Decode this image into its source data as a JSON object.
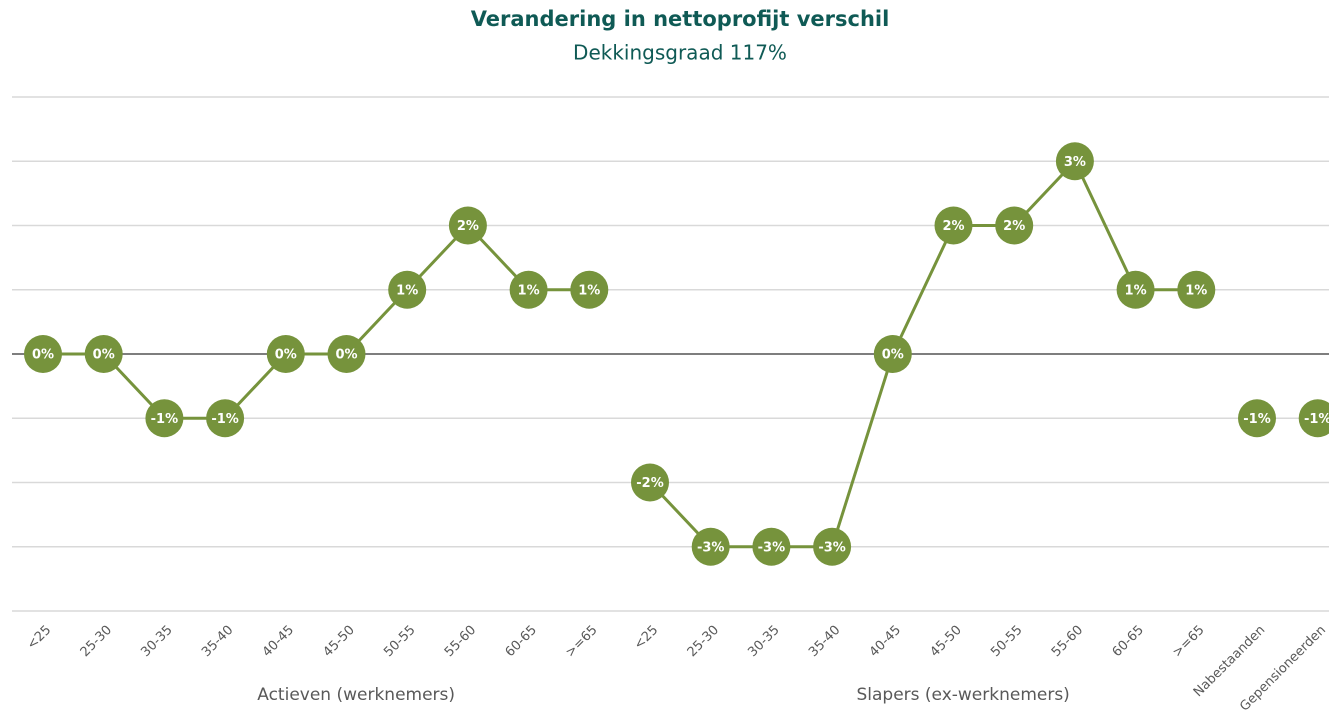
{
  "chart_data": {
    "type": "line",
    "title": "Verandering in nettoprofijt verschil",
    "subtitle": "Dekkingsgraad 117%",
    "categories": [
      "<25",
      "25-30",
      "30-35",
      "35-40",
      "40-45",
      "45-50",
      "50-55",
      "55-60",
      "60-65",
      ">=65",
      "<25",
      "25-30",
      "30-35",
      "35-40",
      "40-45",
      "45-50",
      "50-55",
      "55-60",
      "60-65",
      ">=65",
      "Nabestaanden",
      "Gepensioneerden"
    ],
    "group_labels": [
      "Actieven (werknemers)",
      "Slapers (ex-werknemers)"
    ],
    "series": [
      {
        "color": "#76933c",
        "values": [
          0,
          0,
          -1,
          -1,
          0,
          0,
          1,
          2,
          1,
          1,
          null,
          null,
          null,
          null,
          null,
          null,
          null,
          null,
          null,
          null,
          null,
          null
        ],
        "value_labels": [
          "0%",
          "0%",
          "-1%",
          "-1%",
          "0%",
          "0%",
          "1%",
          "2%",
          "1%",
          "1%",
          null,
          null,
          null,
          null,
          null,
          null,
          null,
          null,
          null,
          null,
          null,
          null
        ]
      },
      {
        "color": "#76933c",
        "values": [
          null,
          null,
          null,
          null,
          null,
          null,
          null,
          null,
          null,
          null,
          -2,
          -3,
          -3,
          -3,
          0,
          2,
          2,
          3,
          1,
          1,
          null,
          null
        ],
        "value_labels": [
          null,
          null,
          null,
          null,
          null,
          null,
          null,
          null,
          null,
          null,
          "-2%",
          "-3%",
          "-3%",
          "-3%",
          "0%",
          "2%",
          "2%",
          "3%",
          "1%",
          "1%",
          null,
          null
        ]
      },
      {
        "color": "#76933c",
        "values": [
          null,
          null,
          null,
          null,
          null,
          null,
          null,
          null,
          null,
          null,
          null,
          null,
          null,
          null,
          null,
          null,
          null,
          null,
          null,
          null,
          -1,
          null
        ],
        "value_labels": [
          null,
          null,
          null,
          null,
          null,
          null,
          null,
          null,
          null,
          null,
          null,
          null,
          null,
          null,
          null,
          null,
          null,
          null,
          null,
          null,
          "-1%",
          null
        ]
      },
      {
        "color": "#76933c",
        "values": [
          null,
          null,
          null,
          null,
          null,
          null,
          null,
          null,
          null,
          null,
          null,
          null,
          null,
          null,
          null,
          null,
          null,
          null,
          null,
          null,
          null,
          -1
        ],
        "value_labels": [
          null,
          null,
          null,
          null,
          null,
          null,
          null,
          null,
          null,
          null,
          null,
          null,
          null,
          null,
          null,
          null,
          null,
          null,
          null,
          null,
          null,
          "-1%"
        ]
      }
    ],
    "ylim": [
      -4,
      4
    ],
    "yticks": [
      -4,
      -3,
      -2,
      -1,
      0,
      1,
      2,
      3,
      4
    ],
    "grid": true
  }
}
